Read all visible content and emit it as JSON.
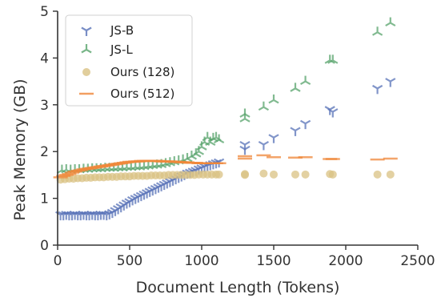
{
  "chart_data": {
    "type": "scatter",
    "xlabel": "Document Length (Tokens)",
    "ylabel": "Peak Memory (GB)",
    "xlim": [
      0,
      2500
    ],
    "ylim": [
      0,
      5
    ],
    "xticks": [
      0,
      500,
      1000,
      1500,
      2000,
      2500
    ],
    "yticks": [
      0,
      1,
      2,
      3,
      4,
      5
    ],
    "grid": false,
    "legend_position": "top-left",
    "series": [
      {
        "name": "JS-B",
        "marker": "tri-down",
        "color": "#5872b8",
        "points": [
          [
            20,
            0.65
          ],
          [
            40,
            0.65
          ],
          [
            60,
            0.66
          ],
          [
            80,
            0.65
          ],
          [
            100,
            0.65
          ],
          [
            120,
            0.66
          ],
          [
            140,
            0.65
          ],
          [
            160,
            0.65
          ],
          [
            180,
            0.66
          ],
          [
            200,
            0.65
          ],
          [
            220,
            0.65
          ],
          [
            240,
            0.66
          ],
          [
            260,
            0.65
          ],
          [
            280,
            0.65
          ],
          [
            300,
            0.66
          ],
          [
            320,
            0.66
          ],
          [
            340,
            0.65
          ],
          [
            360,
            0.67
          ],
          [
            380,
            0.7
          ],
          [
            400,
            0.74
          ],
          [
            420,
            0.78
          ],
          [
            440,
            0.82
          ],
          [
            460,
            0.86
          ],
          [
            480,
            0.9
          ],
          [
            500,
            0.93
          ],
          [
            520,
            0.97
          ],
          [
            540,
            1.0
          ],
          [
            560,
            1.03
          ],
          [
            580,
            1.06
          ],
          [
            600,
            1.09
          ],
          [
            620,
            1.12
          ],
          [
            640,
            1.15
          ],
          [
            660,
            1.18
          ],
          [
            680,
            1.21
          ],
          [
            700,
            1.24
          ],
          [
            720,
            1.27
          ],
          [
            740,
            1.3
          ],
          [
            760,
            1.33
          ],
          [
            780,
            1.36
          ],
          [
            800,
            1.39
          ],
          [
            820,
            1.42
          ],
          [
            840,
            1.45
          ],
          [
            860,
            1.48
          ],
          [
            880,
            1.51
          ],
          [
            900,
            1.54
          ],
          [
            920,
            1.56
          ],
          [
            940,
            1.58
          ],
          [
            960,
            1.6
          ],
          [
            980,
            1.63
          ],
          [
            1000,
            1.65
          ],
          [
            1020,
            1.68
          ],
          [
            1040,
            1.7
          ],
          [
            1060,
            1.72
          ],
          [
            1080,
            1.74
          ],
          [
            1100,
            1.76
          ],
          [
            1120,
            1.78
          ],
          [
            1300,
            2.05
          ],
          [
            1300,
            2.15
          ],
          [
            1430,
            2.15
          ],
          [
            1500,
            2.3
          ],
          [
            1650,
            2.45
          ],
          [
            1720,
            2.6
          ],
          [
            1890,
            2.9
          ],
          [
            1910,
            2.85
          ],
          [
            2220,
            3.35
          ],
          [
            2310,
            3.5
          ]
        ]
      },
      {
        "name": "JS-L",
        "marker": "tri-up",
        "color": "#58a46c",
        "points": [
          [
            30,
            1.6
          ],
          [
            60,
            1.61
          ],
          [
            90,
            1.6
          ],
          [
            120,
            1.61
          ],
          [
            150,
            1.61
          ],
          [
            180,
            1.62
          ],
          [
            210,
            1.62
          ],
          [
            240,
            1.63
          ],
          [
            270,
            1.63
          ],
          [
            300,
            1.63
          ],
          [
            330,
            1.64
          ],
          [
            360,
            1.64
          ],
          [
            390,
            1.64
          ],
          [
            420,
            1.65
          ],
          [
            450,
            1.65
          ],
          [
            480,
            1.66
          ],
          [
            510,
            1.66
          ],
          [
            540,
            1.67
          ],
          [
            570,
            1.67
          ],
          [
            600,
            1.68
          ],
          [
            630,
            1.69
          ],
          [
            660,
            1.7
          ],
          [
            690,
            1.71
          ],
          [
            720,
            1.72
          ],
          [
            750,
            1.74
          ],
          [
            780,
            1.76
          ],
          [
            810,
            1.78
          ],
          [
            840,
            1.8
          ],
          [
            870,
            1.82
          ],
          [
            900,
            1.85
          ],
          [
            930,
            1.9
          ],
          [
            960,
            1.95
          ],
          [
            980,
            2.0
          ],
          [
            1000,
            2.1
          ],
          [
            1020,
            2.2
          ],
          [
            1040,
            2.3
          ],
          [
            1060,
            2.2
          ],
          [
            1080,
            2.28
          ],
          [
            1100,
            2.3
          ],
          [
            1120,
            2.25
          ],
          [
            1300,
            2.7
          ],
          [
            1300,
            2.8
          ],
          [
            1430,
            2.95
          ],
          [
            1500,
            3.1
          ],
          [
            1650,
            3.35
          ],
          [
            1720,
            3.5
          ],
          [
            1890,
            3.95
          ],
          [
            1910,
            3.95
          ],
          [
            2220,
            4.55
          ],
          [
            2310,
            4.75
          ]
        ]
      },
      {
        "name": "Ours (128)",
        "marker": "circle",
        "color": "#d9c283",
        "points": [
          [
            20,
            1.4
          ],
          [
            50,
            1.41
          ],
          [
            80,
            1.42
          ],
          [
            110,
            1.42
          ],
          [
            140,
            1.43
          ],
          [
            170,
            1.43
          ],
          [
            200,
            1.44
          ],
          [
            230,
            1.44
          ],
          [
            260,
            1.45
          ],
          [
            290,
            1.45
          ],
          [
            320,
            1.45
          ],
          [
            350,
            1.46
          ],
          [
            380,
            1.46
          ],
          [
            410,
            1.46
          ],
          [
            440,
            1.47
          ],
          [
            470,
            1.47
          ],
          [
            500,
            1.47
          ],
          [
            530,
            1.48
          ],
          [
            560,
            1.48
          ],
          [
            590,
            1.48
          ],
          [
            620,
            1.48
          ],
          [
            650,
            1.49
          ],
          [
            680,
            1.49
          ],
          [
            710,
            1.49
          ],
          [
            740,
            1.49
          ],
          [
            770,
            1.5
          ],
          [
            800,
            1.5
          ],
          [
            830,
            1.5
          ],
          [
            860,
            1.5
          ],
          [
            890,
            1.5
          ],
          [
            920,
            1.5
          ],
          [
            950,
            1.5
          ],
          [
            980,
            1.51
          ],
          [
            1010,
            1.51
          ],
          [
            1040,
            1.51
          ],
          [
            1070,
            1.51
          ],
          [
            1100,
            1.51
          ],
          [
            1120,
            1.51
          ],
          [
            1300,
            1.5
          ],
          [
            1300,
            1.52
          ],
          [
            1430,
            1.53
          ],
          [
            1500,
            1.51
          ],
          [
            1650,
            1.51
          ],
          [
            1720,
            1.51
          ],
          [
            1890,
            1.52
          ],
          [
            1910,
            1.51
          ],
          [
            2220,
            1.51
          ],
          [
            2310,
            1.51
          ]
        ]
      },
      {
        "name": "Ours (512)",
        "marker": "dash",
        "color": "#f0883a",
        "points": [
          [
            20,
            1.45
          ],
          [
            40,
            1.48
          ],
          [
            60,
            1.5
          ],
          [
            80,
            1.52
          ],
          [
            100,
            1.55
          ],
          [
            120,
            1.57
          ],
          [
            140,
            1.59
          ],
          [
            160,
            1.6
          ],
          [
            180,
            1.62
          ],
          [
            200,
            1.63
          ],
          [
            220,
            1.64
          ],
          [
            240,
            1.65
          ],
          [
            260,
            1.66
          ],
          [
            280,
            1.67
          ],
          [
            300,
            1.68
          ],
          [
            320,
            1.69
          ],
          [
            340,
            1.7
          ],
          [
            360,
            1.71
          ],
          [
            380,
            1.72
          ],
          [
            400,
            1.73
          ],
          [
            420,
            1.74
          ],
          [
            440,
            1.75
          ],
          [
            460,
            1.76
          ],
          [
            480,
            1.77
          ],
          [
            500,
            1.78
          ],
          [
            520,
            1.78
          ],
          [
            540,
            1.79
          ],
          [
            560,
            1.79
          ],
          [
            580,
            1.8
          ],
          [
            600,
            1.8
          ],
          [
            620,
            1.8
          ],
          [
            640,
            1.8
          ],
          [
            660,
            1.8
          ],
          [
            680,
            1.8
          ],
          [
            700,
            1.8
          ],
          [
            720,
            1.79
          ],
          [
            740,
            1.79
          ],
          [
            760,
            1.79
          ],
          [
            780,
            1.79
          ],
          [
            800,
            1.78
          ],
          [
            820,
            1.78
          ],
          [
            840,
            1.78
          ],
          [
            860,
            1.77
          ],
          [
            880,
            1.77
          ],
          [
            900,
            1.77
          ],
          [
            920,
            1.76
          ],
          [
            940,
            1.76
          ],
          [
            960,
            1.76
          ],
          [
            980,
            1.75
          ],
          [
            1000,
            1.75
          ],
          [
            1020,
            1.75
          ],
          [
            1040,
            1.75
          ],
          [
            1060,
            1.75
          ],
          [
            1080,
            1.75
          ],
          [
            1100,
            1.75
          ],
          [
            1120,
            1.75
          ],
          [
            1300,
            1.85
          ],
          [
            1300,
            1.9
          ],
          [
            1430,
            1.92
          ],
          [
            1500,
            1.88
          ],
          [
            1650,
            1.87
          ],
          [
            1720,
            1.88
          ],
          [
            1890,
            1.84
          ],
          [
            1910,
            1.84
          ],
          [
            2220,
            1.83
          ],
          [
            2310,
            1.85
          ]
        ]
      }
    ]
  }
}
